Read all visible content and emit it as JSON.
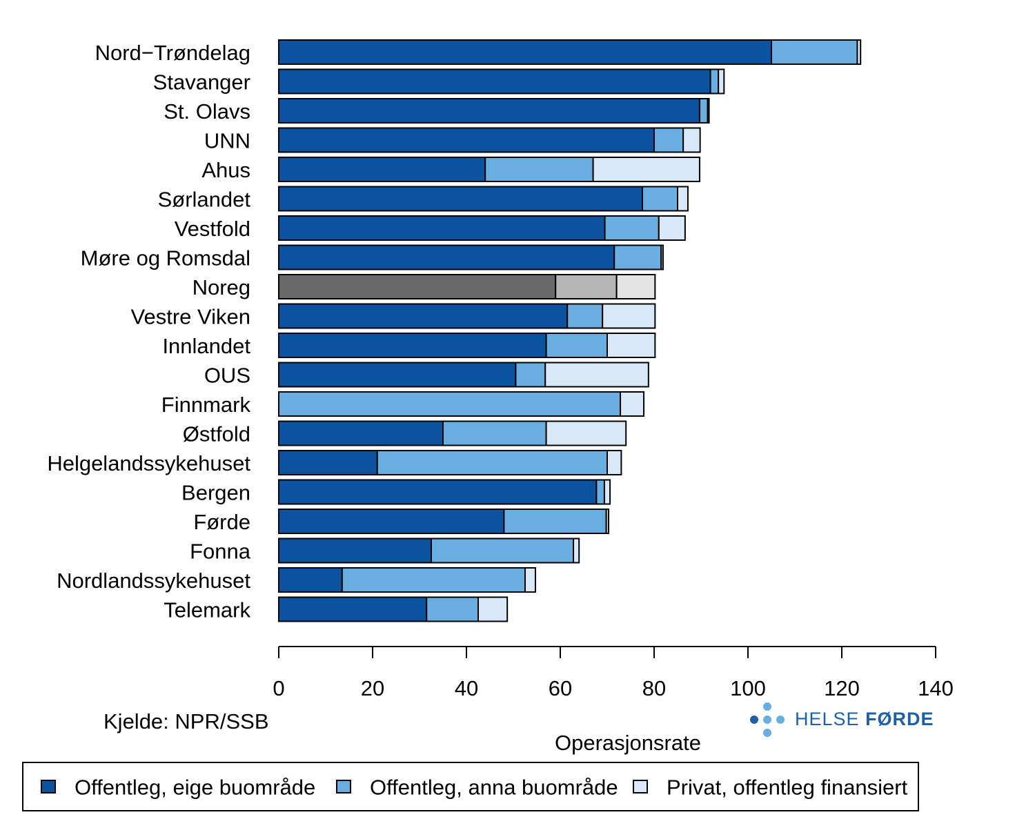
{
  "chart_data": {
    "type": "bar",
    "orientation": "horizontal",
    "stacked": true,
    "categories": [
      "Nord−Trøndelag",
      "Stavanger",
      "St. Olavs",
      "UNN",
      "Ahus",
      "Sørlandet",
      "Vestfold",
      "Møre og Romsdal",
      "Noreg",
      "Vestre Viken",
      "Innlandet",
      "OUS",
      "Finnmark",
      "Østfold",
      "Helgelandssykehuset",
      "Bergen",
      "Førde",
      "Fonna",
      "Nordlandssykehuset",
      "Telemark"
    ],
    "highlight_category": "Noreg",
    "series": [
      {
        "name": "Offentleg, eige buområde",
        "color": "#0B539F",
        "highlight_color": "#696969",
        "values": [
          105,
          92,
          89.7,
          80,
          44,
          77.5,
          69.5,
          71.5,
          59,
          61.5,
          57,
          50.5,
          0,
          35,
          21,
          67.7,
          48,
          32.5,
          13.5,
          31.5
        ]
      },
      {
        "name": "Offentleg, anna buområde",
        "color": "#69AEE0",
        "highlight_color": "#B5B5B5",
        "values": [
          18.3,
          1.7,
          1.7,
          6.2,
          23,
          7.5,
          11.5,
          10,
          13,
          7.5,
          13,
          6.3,
          72.8,
          22,
          49,
          1.7,
          21.8,
          30.3,
          39,
          11
        ]
      },
      {
        "name": "Privat, offentleg finansiert",
        "color": "#D8E8F6",
        "highlight_color": "#E3E3E3",
        "values": [
          0.7,
          1.2,
          0.3,
          3.6,
          22.7,
          2.2,
          5.6,
          0.4,
          8.2,
          11.2,
          10.2,
          22,
          5,
          17,
          3,
          1.2,
          0.5,
          1.2,
          2.2,
          6.2
        ]
      }
    ],
    "xlabel": "Operasjonsrate",
    "ylabel": "",
    "xlim": [
      0,
      140
    ],
    "x_ticks": [
      0,
      20,
      40,
      60,
      80,
      100,
      120,
      140
    ],
    "grid": false,
    "legend_position": "bottom"
  },
  "source_text": "Kjelde: NPR/SSB",
  "logo": {
    "word1": "HELSE",
    "word2": "FØRDE"
  },
  "colors": {
    "logo_dark": "#1f5fa8",
    "logo_light": "#69AEE0"
  }
}
